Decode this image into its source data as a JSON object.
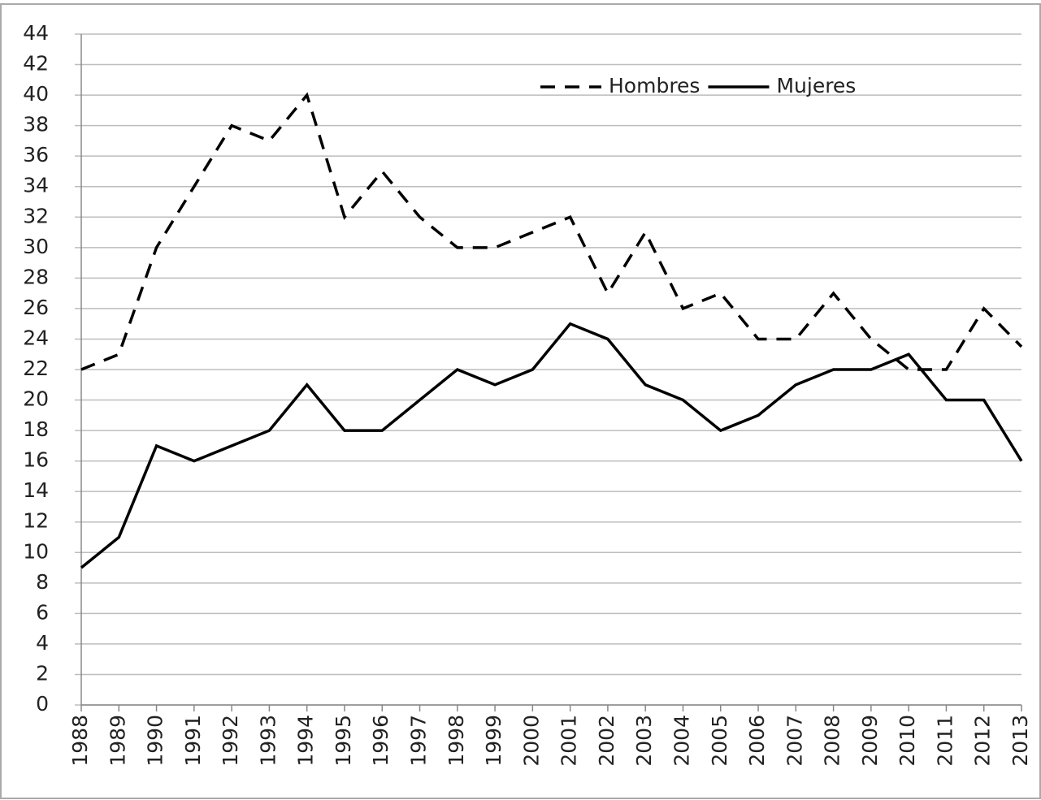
{
  "chart_data": {
    "type": "line",
    "categories": [
      "1988",
      "1989",
      "1990",
      "1991",
      "1992",
      "1993",
      "1994",
      "1995",
      "1996",
      "1997",
      "1998",
      "1999",
      "2000",
      "2001",
      "2002",
      "2003",
      "2004",
      "2005",
      "2006",
      "2007",
      "2008",
      "2009",
      "2010",
      "2011",
      "2012",
      "2013"
    ],
    "series": [
      {
        "name": "Hombres",
        "color": "#000000",
        "dash": true,
        "values": [
          22,
          23,
          30,
          34,
          38,
          37,
          40,
          32,
          35,
          32,
          30,
          30,
          31,
          32,
          27,
          31,
          26,
          27,
          24,
          24,
          27,
          24,
          22,
          22,
          26,
          23.5
        ]
      },
      {
        "name": "Mujeres",
        "color": "#000000",
        "dash": false,
        "values": [
          9,
          11,
          17,
          16,
          17,
          18,
          21,
          18,
          18,
          20,
          22,
          21,
          22,
          25,
          24,
          21,
          20,
          18,
          19,
          21,
          22,
          22,
          23,
          20,
          20,
          16
        ]
      }
    ],
    "ylim": [
      0,
      44
    ],
    "yticks": [
      0,
      2,
      4,
      6,
      8,
      10,
      12,
      14,
      16,
      18,
      20,
      22,
      24,
      26,
      28,
      30,
      32,
      34,
      36,
      38,
      40,
      42,
      44
    ],
    "grid": true,
    "legend": "top-right"
  }
}
